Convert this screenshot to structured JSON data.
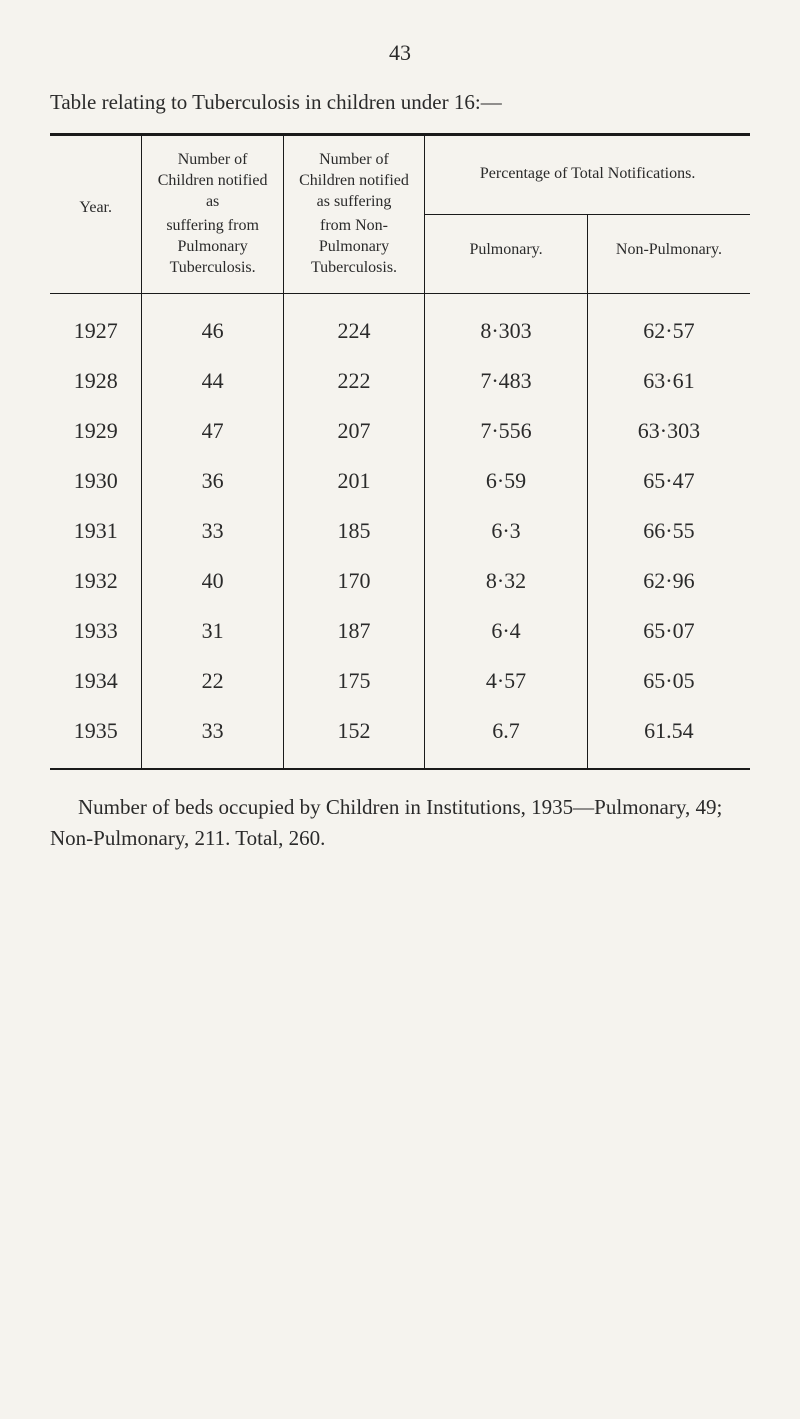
{
  "page_number": "43",
  "table_title": "Table relating to Tuberculosis in children under 16:—",
  "headers": {
    "year": "Year.",
    "col2_top": "Number of Children notified as",
    "col2_bottom": "suffering from Pulmonary Tuberculosis.",
    "col3_top": "Number of Children notified as suffering",
    "col3_bottom": "from Non-Pulmonary Tuberculosis.",
    "pct_span": "Percentage of Total Notifications.",
    "pct_pulm": "Pulmonary.",
    "pct_nonpulm": "Non-Pulmonary."
  },
  "rows": [
    {
      "year": "1927",
      "pulm": "46",
      "nonpulm": "224",
      "pct_pulm": "8·303",
      "pct_nonpulm": "62·57"
    },
    {
      "year": "1928",
      "pulm": "44",
      "nonpulm": "222",
      "pct_pulm": "7·483",
      "pct_nonpulm": "63·61"
    },
    {
      "year": "1929",
      "pulm": "47",
      "nonpulm": "207",
      "pct_pulm": "7·556",
      "pct_nonpulm": "63·303"
    },
    {
      "year": "1930",
      "pulm": "36",
      "nonpulm": "201",
      "pct_pulm": "6·59",
      "pct_nonpulm": "65·47"
    },
    {
      "year": "1931",
      "pulm": "33",
      "nonpulm": "185",
      "pct_pulm": "6·3",
      "pct_nonpulm": "66·55"
    },
    {
      "year": "1932",
      "pulm": "40",
      "nonpulm": "170",
      "pct_pulm": "8·32",
      "pct_nonpulm": "62·96"
    },
    {
      "year": "1933",
      "pulm": "31",
      "nonpulm": "187",
      "pct_pulm": "6·4",
      "pct_nonpulm": "65·07"
    },
    {
      "year": "1934",
      "pulm": "22",
      "nonpulm": "175",
      "pct_pulm": "4·57",
      "pct_nonpulm": "65·05"
    },
    {
      "year": "1935",
      "pulm": "33",
      "nonpulm": "152",
      "pct_pulm": "6.7",
      "pct_nonpulm": "61.54"
    }
  ],
  "footer": "Number of beds occupied by Children in Institutions, 1935—Pulmonary, 49; Non-Pulmonary, 211.  Total, 260.",
  "colors": {
    "page_bg": "#f5f3ee",
    "text": "#2a2a2a",
    "rule": "#1a1a1a"
  },
  "typography": {
    "body_fontsize": 21,
    "data_fontsize": 22,
    "header_fontsize": 16
  }
}
